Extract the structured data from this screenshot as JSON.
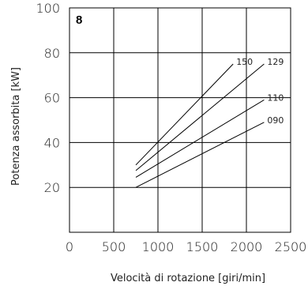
{
  "chart_data": {
    "type": "line",
    "panel_label": "8",
    "xlabel": "Velocità di rotazione [giri/min]",
    "ylabel": "Potenza assorbita [kW]",
    "xlim": [
      0,
      2500
    ],
    "ylim": [
      0,
      100
    ],
    "x_ticks": [
      "0",
      "500",
      "1000",
      "1500",
      "2000",
      "2500"
    ],
    "y_ticks": [
      "20",
      "40",
      "60",
      "80",
      "100"
    ],
    "grid": true,
    "series": [
      {
        "name": "150",
        "x": [
          750,
          1850
        ],
        "y": [
          30,
          75
        ]
      },
      {
        "name": "129",
        "x": [
          750,
          2200
        ],
        "y": [
          27.5,
          75
        ]
      },
      {
        "name": "110",
        "x": [
          750,
          2200
        ],
        "y": [
          24.5,
          59
        ]
      },
      {
        "name": "090",
        "x": [
          750,
          2200
        ],
        "y": [
          20,
          49
        ]
      }
    ]
  }
}
